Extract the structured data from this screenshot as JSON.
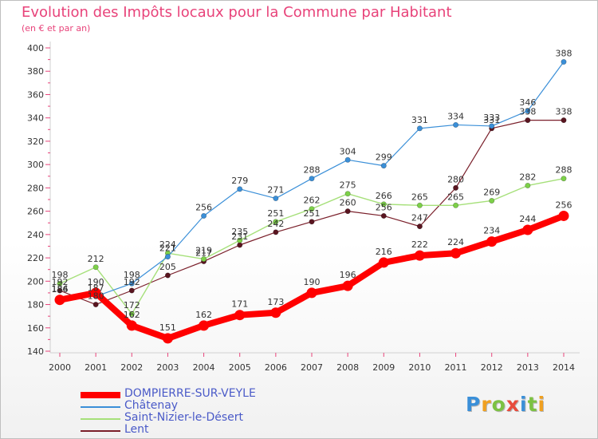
{
  "header": {
    "title": "Evolution des Impôts locaux pour la Commune par Habitant",
    "subtitle": "(en € et par an)"
  },
  "logo": {
    "text": "Proxiti",
    "colors": [
      "#3a8fd8",
      "#f0a020",
      "#7cc242",
      "#e84b3c",
      "#3a8fd8",
      "#7cc242",
      "#f0a020"
    ]
  },
  "chart_data": {
    "type": "line",
    "title": "Evolution des Impôts locaux pour la Commune par Habitant",
    "subtitle": "(en € et par an)",
    "x": [
      "2000",
      "2001",
      "2002",
      "2003",
      "2004",
      "2005",
      "2006",
      "2007",
      "2008",
      "2009",
      "2010",
      "2011",
      "2012",
      "2013",
      "2014"
    ],
    "ylim": [
      140,
      400
    ],
    "yticks": [
      140,
      160,
      180,
      200,
      220,
      240,
      260,
      280,
      300,
      320,
      340,
      360,
      380,
      400
    ],
    "grid": false,
    "legend_position": "bottom-left",
    "series": [
      {
        "name": "DOMPIERRE-SUR-VEYLE",
        "color": "#ff0000",
        "values": [
          184,
          190,
          162,
          151,
          162,
          171,
          173,
          190,
          196,
          216,
          222,
          224,
          234,
          244,
          256
        ]
      },
      {
        "name": "Châtenay",
        "color": "#3a8fd8",
        "values": [
          186,
          187,
          198,
          221,
          256,
          279,
          271,
          288,
          304,
          299,
          331,
          334,
          333,
          346,
          388
        ]
      },
      {
        "name": "Saint-Nizier-le-Désert",
        "color": "#a6e07a",
        "values": [
          198,
          212,
          172,
          224,
          219,
          235,
          251,
          262,
          275,
          266,
          265,
          265,
          269,
          282,
          288
        ]
      },
      {
        "name": "Lent",
        "color": "#7a1f2a",
        "values": [
          192,
          180,
          192,
          205,
          217,
          231,
          242,
          251,
          260,
          256,
          247,
          280,
          331,
          338,
          338
        ]
      }
    ]
  }
}
